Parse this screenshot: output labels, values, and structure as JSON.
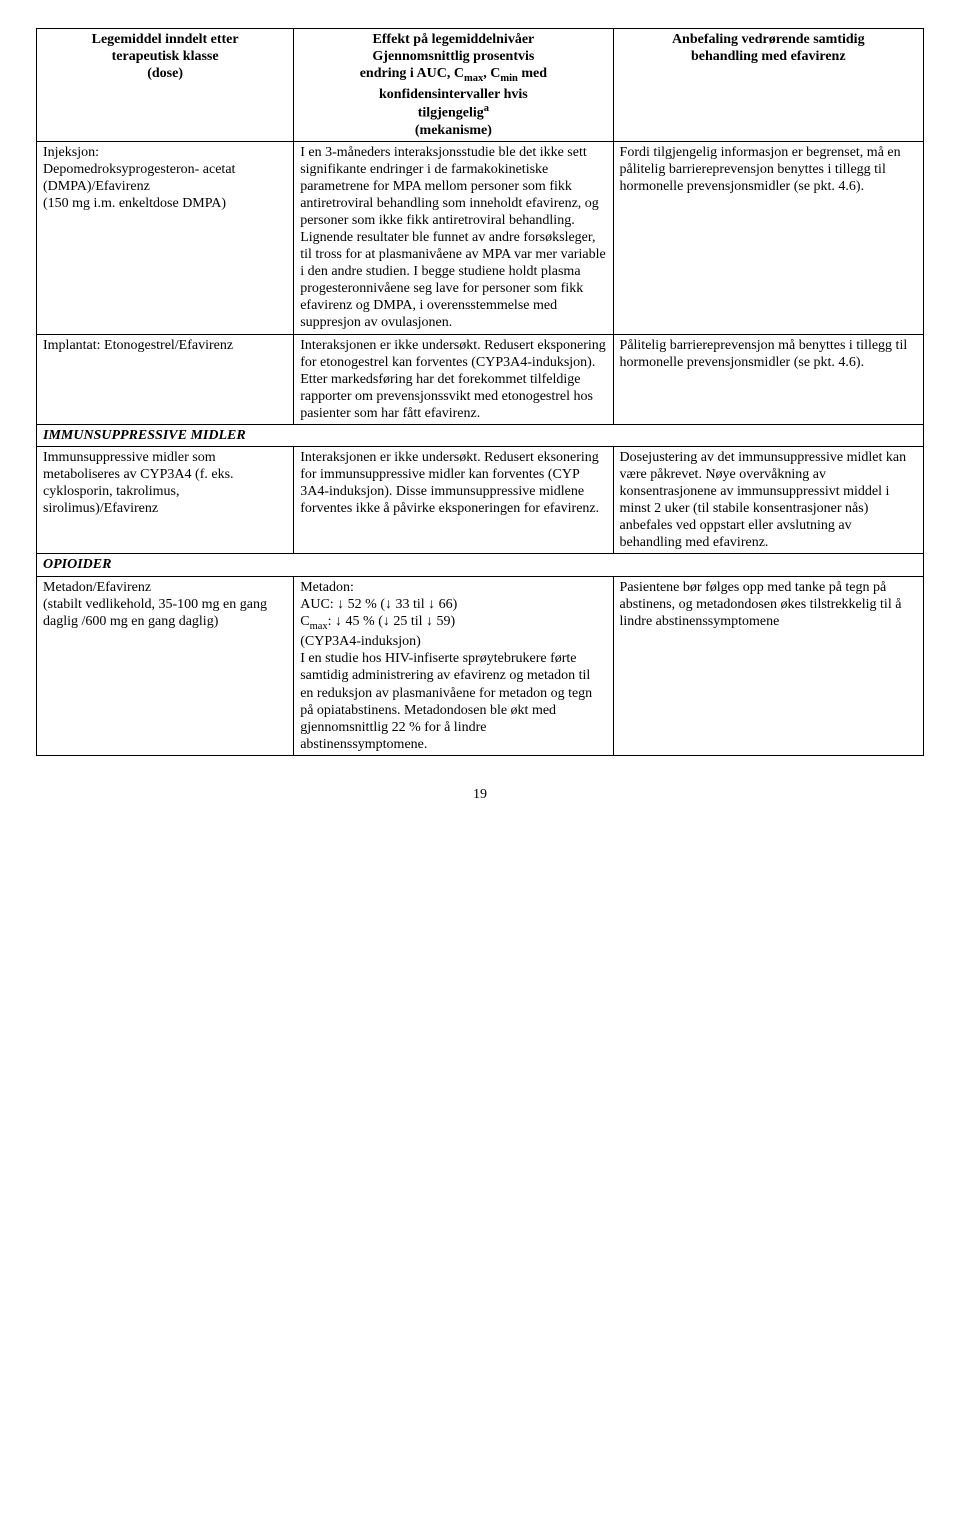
{
  "headers": {
    "col1_line1": "Legemiddel inndelt etter",
    "col1_line2": "terapeutisk klasse",
    "col1_line3": "(dose)",
    "col2_line1": "Effekt på legemiddelnivåer",
    "col2_line2": "Gjennomsnittlig prosentvis",
    "col2_line3a": "endring i AUC, C",
    "col2_line3b": ", C",
    "col2_line3c": " med",
    "col2_line4": "konfidensintervaller hvis",
    "col2_line5a": "tilgjengelig",
    "col2_line6": "(mekanisme)",
    "col3_line1": "Anbefaling vedrørende samtidig",
    "col3_line2": "behandling med efavirenz"
  },
  "row1": {
    "c1": "Injeksjon:\nDepomedroksyprogesteron- acetat (DMPA)/Efavirenz\n(150 mg i.m. enkeltdose DMPA)",
    "c2": "I en 3-måneders interaksjonsstudie ble det ikke sett signifikante endringer i de farmakokinetiske parametrene for MPA mellom personer som fikk antiretroviral behandling som inneholdt efavirenz, og personer som ikke fikk antiretroviral behandling. Lignende resultater ble funnet av andre forsøksleger, til tross for at plasmanivåene av MPA var mer variable i den andre studien. I begge studiene holdt plasma progesteronnivåene seg lave for personer som fikk efavirenz og DMPA, i overensstemmelse med suppresjon av ovulasjonen.",
    "c3": "Fordi tilgjengelig informasjon er begrenset, må en pålitelig barriereprevensjon benyttes i tillegg til hormonelle prevensjonsmidler (se pkt. 4.6)."
  },
  "row2": {
    "c1": "Implantat: Etonogestrel/Efavirenz",
    "c2": "Interaksjonen er ikke undersøkt. Redusert eksponering for etonogestrel kan forventes (CYP3A4-induksjon). Etter markedsføring har det forekommet tilfeldige rapporter om prevensjonssvikt med etonogestrel hos pasienter  som har fått efavirenz.",
    "c3": "Pålitelig barriereprevensjon må benyttes i tillegg til hormonelle prevensjonsmidler (se pkt. 4.6)."
  },
  "section1": "IMMUNSUPPRESSIVE MIDLER",
  "row3": {
    "c1": "Immunsuppressive midler som metaboliseres av CYP3A4 (f. eks. cyklosporin, takrolimus, sirolimus)/Efavirenz",
    "c2": "Interaksjonen er ikke undersøkt. Redusert eksonering for immunsuppressive midler kan forventes (CYP 3A4-induksjon). Disse immunsuppressive midlene forventes ikke å påvirke eksponeringen for efavirenz.",
    "c3": "Dosejustering av det immunsuppressive midlet kan være påkrevet. Nøye overvåkning av konsentrasjonene av immunsuppressivt middel i minst 2 uker (til stabile konsentrasjoner nås) anbefales ved oppstart eller avslutning av behandling med efavirenz."
  },
  "section2": "OPIOIDER",
  "row4": {
    "c1": "Metadon/Efavirenz\n(stabilt vedlikehold, 35-100 mg en gang daglig /600 mg en gang daglig)",
    "c2": "Metadon:\nAUC: ↓ 52 % (↓ 33 til ↓ 66)\nCmax: ↓ 45 % (↓ 25 til ↓ 59)\n(CYP3A4-induksjon)\nI en studie hos HIV-infiserte sprøytebrukere førte samtidig administrering av efavirenz og metadon til en reduksjon av plasmanivåene for metadon og tegn på opiatabstinens. Metadondosen ble økt med gjennomsnittlig 22 % for å lindre abstinenssymptomene.",
    "c3": "Pasientene bør følges opp med tanke på tegn på abstinens, og metadondosen økes tilstrekkelig til å lindre abstinenssymptomene"
  },
  "pageNumber": "19"
}
